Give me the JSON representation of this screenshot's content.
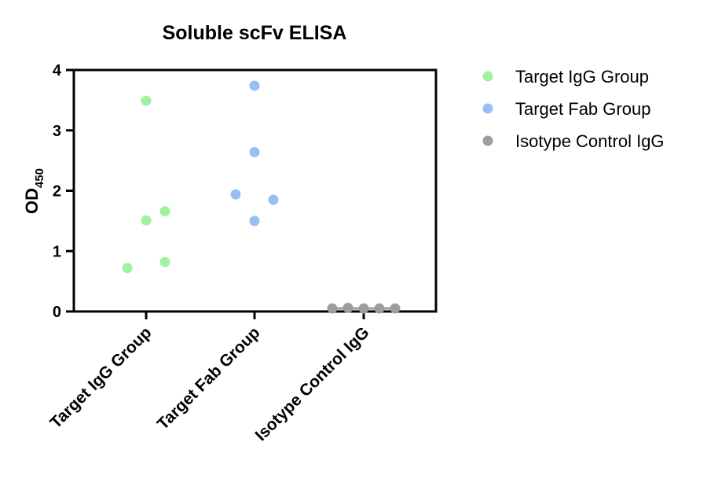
{
  "chart_data": {
    "type": "scatter",
    "title": "Soluble scFv ELISA",
    "ylabel": "OD",
    "ylabel_subscript": "450",
    "xlabel": "",
    "ylim": [
      0,
      4
    ],
    "yticks": [
      0,
      1,
      2,
      3,
      4
    ],
    "grid": false,
    "legend_position": "right",
    "categories": [
      "Target IgG Group",
      "Target Fab Group",
      "Isotype Control IgG"
    ],
    "series": [
      {
        "name": "Target IgG Group",
        "color": "#9ff29f",
        "category": "Target IgG Group",
        "points": [
          {
            "offset": -1,
            "y": 0.72
          },
          {
            "offset": 0,
            "y": 3.49
          },
          {
            "offset": 0,
            "y": 1.51
          },
          {
            "offset": 1,
            "y": 1.66
          },
          {
            "offset": 1,
            "y": 0.82
          }
        ]
      },
      {
        "name": "Target Fab Group",
        "color": "#98bff3",
        "category": "Target Fab Group",
        "points": [
          {
            "offset": -1,
            "y": 1.94
          },
          {
            "offset": 0,
            "y": 3.74
          },
          {
            "offset": 0,
            "y": 2.64
          },
          {
            "offset": 0,
            "y": 1.5
          },
          {
            "offset": 1,
            "y": 1.85
          }
        ]
      },
      {
        "name": "Isotype Control IgG",
        "color": "#9d9d9d",
        "category": "Isotype Control IgG",
        "points": [
          {
            "offset": -2,
            "y": 0.05
          },
          {
            "offset": -1,
            "y": 0.06
          },
          {
            "offset": 0,
            "y": 0.05
          },
          {
            "offset": 1,
            "y": 0.05
          },
          {
            "offset": 2,
            "y": 0.05
          }
        ]
      }
    ]
  }
}
